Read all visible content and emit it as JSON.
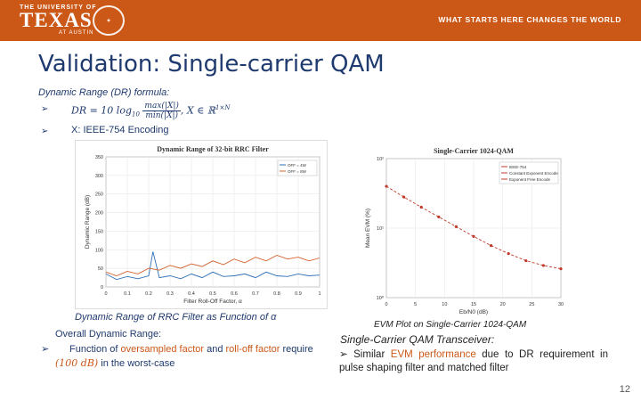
{
  "banner": {
    "logo_small": "THE UNIVERSITY OF",
    "logo_big": "TEXAS",
    "logo_sub": "AT AUSTIN",
    "tagline": "WHAT STARTS HERE CHANGES THE WORLD",
    "color": "#cc5818"
  },
  "title": "Validation: Single-carrier QAM",
  "dr": {
    "heading": "Dynamic Range (DR) formula:",
    "formula_lhs": "DR = 10 log",
    "formula_sub": "10",
    "formula_num": "max(|X|)",
    "formula_den": "min(|X|)",
    "formula_domain": ", X ∈ ℝ",
    "formula_sup": "1×N",
    "encoding": "X: IEEE-754 Encoding"
  },
  "left_chart": {
    "caption": "Dynamic Range of RRC Filter as Function of α",
    "overall_heading": "Overall Dynamic Range:",
    "requirement_pre": "Function of ",
    "requirement_hl1": "oversampled factor",
    "requirement_mid": " and ",
    "requirement_hl2": "roll-off factor",
    "requirement_mid2": " require ",
    "requirement_hl3": "(100 dB)",
    "requirement_post": " in the worst-case"
  },
  "right_chart": {
    "caption": "EVM Plot on Single-Carrier 1024-QAM",
    "heading": "Single-Carrier QAM Transceiver:",
    "body_pre": "Similar ",
    "body_hl": "EVM performance",
    "body_post": " due to DR requirement in pulse shaping filter and matched filter"
  },
  "slide_number": "12",
  "chart_data": [
    {
      "type": "line",
      "title": "Dynamic Range of 32-bit RRC Filter",
      "xlabel": "Filter Roll-Off Factor, α",
      "ylabel": "Dynamic Range (dB)",
      "xlim": [
        0,
        1
      ],
      "ylim": [
        0,
        350
      ],
      "x_ticks": [
        "0",
        "0.1",
        "0.2",
        "0.3",
        "0.4",
        "0.5",
        "0.6",
        "0.7",
        "0.8",
        "0.9",
        "1"
      ],
      "y_ticks": [
        "0",
        "50",
        "100",
        "150",
        "200",
        "250",
        "300",
        "350"
      ],
      "legend": [
        "OFF = 4W",
        "OFF = 8W"
      ],
      "legend_position": "top-right",
      "grid": true,
      "series": [
        {
          "name": "OFF = 4W",
          "color": "#2f6fb5",
          "x": [
            0.0,
            0.05,
            0.1,
            0.15,
            0.2,
            0.22,
            0.25,
            0.3,
            0.35,
            0.4,
            0.45,
            0.5,
            0.55,
            0.6,
            0.65,
            0.7,
            0.75,
            0.8,
            0.85,
            0.9,
            0.95,
            1.0
          ],
          "y": [
            35,
            20,
            28,
            22,
            30,
            95,
            25,
            30,
            22,
            35,
            25,
            40,
            28,
            30,
            35,
            25,
            40,
            30,
            28,
            35,
            30,
            32
          ]
        },
        {
          "name": "OFF = 8W",
          "color": "#d2602a",
          "x": [
            0.0,
            0.05,
            0.1,
            0.15,
            0.2,
            0.25,
            0.3,
            0.35,
            0.4,
            0.45,
            0.5,
            0.55,
            0.6,
            0.65,
            0.7,
            0.75,
            0.8,
            0.85,
            0.9,
            0.95,
            1.0
          ],
          "y": [
            40,
            30,
            42,
            35,
            50,
            45,
            58,
            50,
            62,
            55,
            70,
            60,
            75,
            65,
            80,
            70,
            85,
            75,
            80,
            70,
            78
          ]
        }
      ]
    },
    {
      "type": "line",
      "title": "Single-Carrier 1024-QAM",
      "xlabel": "Eb/N0 (dB)",
      "ylabel": "Mean EVM (%)",
      "scale_y": "log",
      "xlim": [
        0,
        30
      ],
      "ylim": [
        1,
        100
      ],
      "x_ticks": [
        "0",
        "5",
        "10",
        "15",
        "20",
        "25",
        "30"
      ],
      "y_ticks": [
        "10⁰",
        "10¹",
        "10²"
      ],
      "legend": [
        "IEEE-754",
        "Constant Exponent Encode",
        "Exponent Free Encode"
      ],
      "legend_position": "top-right",
      "grid": true,
      "series": [
        {
          "name": "IEEE-754",
          "color": "#c0392b",
          "x": [
            0,
            3,
            6,
            9,
            12,
            15,
            18,
            21,
            24,
            27,
            30
          ],
          "y": [
            40,
            28,
            20,
            14.5,
            10.5,
            7.6,
            5.6,
            4.3,
            3.4,
            2.9,
            2.6
          ]
        }
      ]
    }
  ]
}
